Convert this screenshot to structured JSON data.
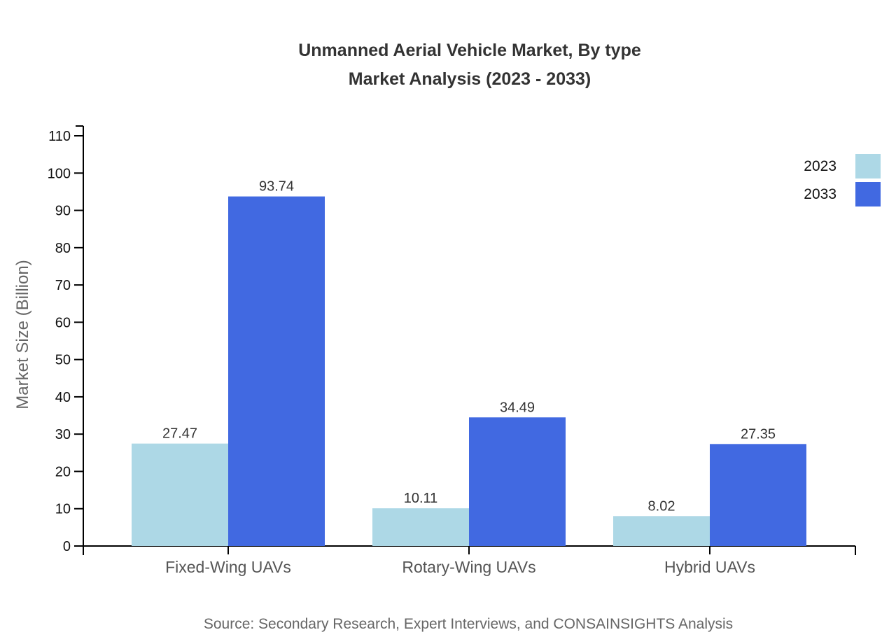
{
  "page": {
    "background": "#ffffff"
  },
  "header": {
    "title_line1": "Unmanned Aerial Vehicle Market, By type",
    "title_line2": "Market Analysis (2023 - 2033)"
  },
  "chart_data": {
    "type": "bar",
    "title": "Unmanned Aerial Vehicle Market, By type Market Analysis (2023 - 2033)",
    "categories": [
      "Fixed-Wing UAVs",
      "Rotary-Wing UAVs",
      "Hybrid UAVs"
    ],
    "series": [
      {
        "name": "2023",
        "color": "#ADD8E6",
        "values": [
          27.47,
          10.11,
          8.02
        ]
      },
      {
        "name": "2033",
        "color": "#4169E1",
        "values": [
          93.74,
          34.49,
          27.35
        ]
      }
    ],
    "bar_labels": [
      "27.47",
      "93.74",
      "10.11",
      "34.49",
      "8.02",
      "27.35"
    ],
    "xlabel": "",
    "ylabel": "Market Size (Billion)",
    "ylim": [
      0,
      110
    ],
    "ytick_step": 10,
    "ytick_labels": [
      "0",
      "10",
      "20",
      "30",
      "40",
      "50",
      "60",
      "70",
      "80",
      "90",
      "100",
      "110"
    ],
    "grid": false,
    "legend_position": "top-right",
    "axis_color": "#000000",
    "tick_label_color": "#111111",
    "bar_label_color": "#333333",
    "category_label_color": "#555555"
  },
  "footer": {
    "source": "Source: Secondary Research, Expert Interviews, and CONSAINSIGHTS Analysis"
  }
}
